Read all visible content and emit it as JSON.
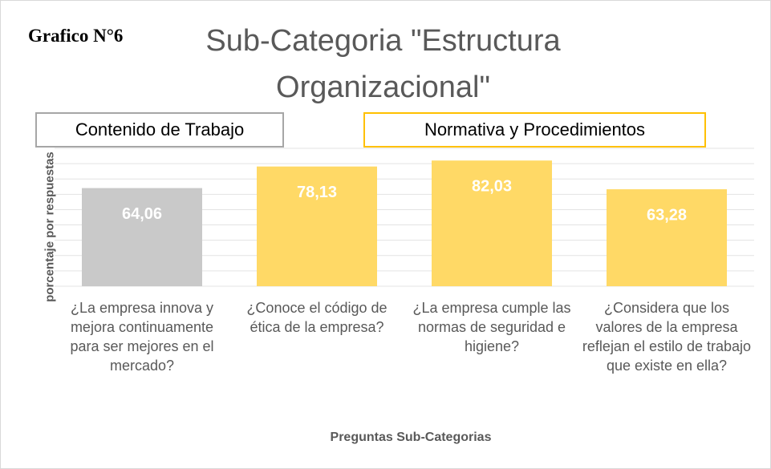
{
  "chart_data": {
    "type": "bar",
    "label": "Grafico N°6",
    "title": "Sub-Categoria \"Estructura Organizacional\"",
    "annotations": [
      {
        "text": "Contenido de Trabajo",
        "color": "#a6a6a6"
      },
      {
        "text": "Normativa y Procedimientos",
        "color": "#ffc000"
      }
    ],
    "y_label": "porcentaje por respuestas",
    "x_label": "Preguntas Sub-Categorias",
    "categories": [
      "¿La empresa innova y mejora continuamente para ser mejores en el mercado?",
      "¿Conoce el código de ética de la empresa?",
      "¿La empresa cumple las normas de seguridad e higiene?",
      "¿Considera que los valores de la empresa reflejan el estilo de trabajo que existe en ella?"
    ],
    "values": [
      64.06,
      78.13,
      82.03,
      63.28
    ],
    "value_labels": [
      "64,06",
      "78,13",
      "82,03",
      "63,28"
    ],
    "colors": [
      "#c9c9c9",
      "#ffd966",
      "#ffd966",
      "#ffd966"
    ],
    "ylim": [
      0,
      90
    ],
    "yticks": [
      0,
      10,
      20,
      30,
      40,
      50,
      60,
      70,
      80,
      90
    ],
    "grid": true
  }
}
